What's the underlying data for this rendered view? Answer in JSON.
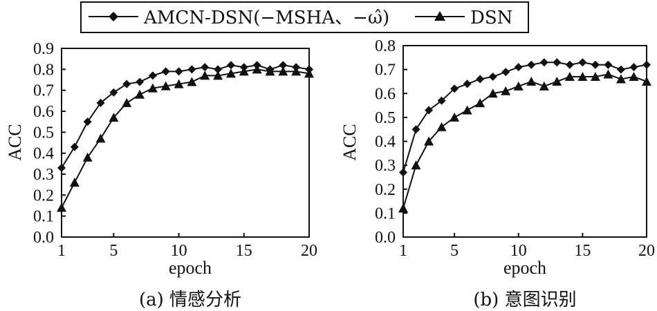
{
  "chart_data": [
    {
      "type": "line",
      "caption": "(a) 情感分析",
      "xlabel": "epoch",
      "ylabel": "ACC",
      "xlim": [
        1,
        20
      ],
      "ylim": [
        0.0,
        0.9
      ],
      "xticks": [
        "1",
        "5",
        "10",
        "15",
        "20"
      ],
      "yticks": [
        "0.0",
        "0.1",
        "0.2",
        "0.3",
        "0.4",
        "0.5",
        "0.6",
        "0.7",
        "0.8",
        "0.9"
      ],
      "x": [
        1,
        2,
        3,
        4,
        5,
        6,
        7,
        8,
        9,
        10,
        11,
        12,
        13,
        14,
        15,
        16,
        17,
        18,
        19,
        20
      ],
      "series": [
        {
          "name": "AMCN-DSN(−MSHA、−ω̂)",
          "marker": "diamond",
          "values": [
            0.33,
            0.43,
            0.55,
            0.64,
            0.69,
            0.73,
            0.74,
            0.77,
            0.79,
            0.79,
            0.8,
            0.81,
            0.8,
            0.82,
            0.81,
            0.82,
            0.8,
            0.82,
            0.81,
            0.8
          ]
        },
        {
          "name": "DSN",
          "marker": "triangle",
          "values": [
            0.14,
            0.26,
            0.38,
            0.47,
            0.57,
            0.64,
            0.68,
            0.71,
            0.72,
            0.73,
            0.74,
            0.77,
            0.77,
            0.78,
            0.79,
            0.8,
            0.79,
            0.79,
            0.79,
            0.78
          ]
        }
      ]
    },
    {
      "type": "line",
      "caption": "(b) 意图识别",
      "xlabel": "epoch",
      "ylabel": "ACC",
      "xlim": [
        1,
        20
      ],
      "ylim": [
        0.0,
        0.8
      ],
      "xticks": [
        "1",
        "5",
        "10",
        "15",
        "20"
      ],
      "yticks": [
        "0.0",
        "0.1",
        "0.2",
        "0.3",
        "0.4",
        "0.5",
        "0.6",
        "0.7",
        "0.8"
      ],
      "x": [
        1,
        2,
        3,
        4,
        5,
        6,
        7,
        8,
        9,
        10,
        11,
        12,
        13,
        14,
        15,
        16,
        17,
        18,
        19,
        20
      ],
      "series": [
        {
          "name": "AMCN-DSN(−MSHA、−ω̂)",
          "marker": "diamond",
          "values": [
            0.27,
            0.45,
            0.53,
            0.57,
            0.62,
            0.64,
            0.66,
            0.67,
            0.69,
            0.71,
            0.72,
            0.73,
            0.73,
            0.72,
            0.73,
            0.72,
            0.72,
            0.7,
            0.71,
            0.72
          ]
        },
        {
          "name": "DSN",
          "marker": "triangle",
          "values": [
            0.12,
            0.3,
            0.4,
            0.46,
            0.5,
            0.53,
            0.56,
            0.6,
            0.61,
            0.63,
            0.65,
            0.63,
            0.65,
            0.67,
            0.67,
            0.67,
            0.68,
            0.66,
            0.67,
            0.65
          ]
        }
      ]
    }
  ]
}
